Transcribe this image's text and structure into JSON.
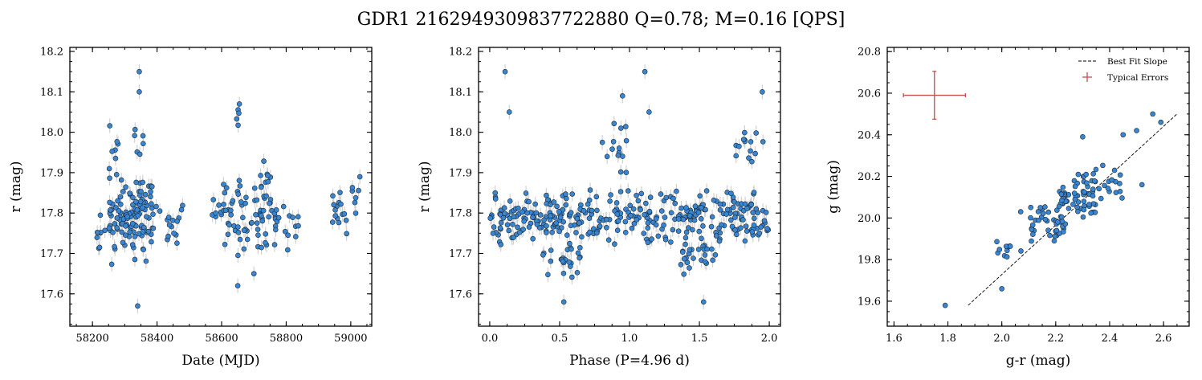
{
  "title": "GDR1 2162949309837722880  Q=0.78; M=0.16 [QPS]",
  "colors": {
    "point": "#3a85d0",
    "edge": "#1a2a3a",
    "errbar": "#d0d0d0",
    "fit": "#000000",
    "typical": "#c0504d"
  },
  "chart_data": [
    {
      "type": "scatter",
      "name": "lightcurve",
      "xlabel": "Date (MJD)",
      "ylabel": "r (mag)",
      "xlim": [
        58130,
        59065
      ],
      "ylim": [
        18.21,
        17.52
      ],
      "xticks": [
        58200,
        58400,
        58600,
        58800,
        59000
      ],
      "yticks": [
        17.6,
        17.7,
        17.8,
        17.9,
        18.0,
        18.1,
        18.2
      ],
      "seed": 11,
      "clusters": [
        {
          "x": [
            58210,
            58250
          ],
          "y": [
            17.68,
            17.82
          ],
          "n": 8
        },
        {
          "x": [
            58250,
            58390
          ],
          "y": [
            17.66,
            17.92
          ],
          "n": 110
        },
        {
          "x": [
            58250,
            58300
          ],
          "y": [
            17.85,
            18.02
          ],
          "n": 8
        },
        {
          "x": [
            58330,
            58360
          ],
          "y": [
            17.58,
            18.15
          ],
          "n": 12
        },
        {
          "x": [
            58390,
            58480
          ],
          "y": [
            17.67,
            17.86
          ],
          "n": 16
        },
        {
          "x": [
            58570,
            58630
          ],
          "y": [
            17.67,
            17.92
          ],
          "n": 20
        },
        {
          "x": [
            58630,
            58680
          ],
          "y": [
            17.62,
            17.97
          ],
          "n": 22
        },
        {
          "x": [
            58645,
            58660
          ],
          "y": [
            17.98,
            18.08
          ],
          "n": 4
        },
        {
          "x": [
            58690,
            58770
          ],
          "y": [
            17.68,
            17.95
          ],
          "n": 45
        },
        {
          "x": [
            58770,
            58840
          ],
          "y": [
            17.68,
            17.9
          ],
          "n": 12
        },
        {
          "x": [
            58940,
            59030
          ],
          "y": [
            17.72,
            17.92
          ],
          "n": 22
        }
      ],
      "points": [
        [
          58340,
          17.57
        ],
        [
          58345,
          18.15
        ],
        [
          58345,
          18.1
        ],
        [
          58655,
          18.07
        ],
        [
          58650,
          17.62
        ],
        [
          58700,
          17.65
        ]
      ]
    },
    {
      "type": "scatter",
      "name": "phase-folded",
      "xlabel": "Phase (P=4.96 d)",
      "ylabel": "r (mag)",
      "xlim": [
        -0.08,
        2.08
      ],
      "ylim": [
        18.21,
        17.52
      ],
      "xticks": [
        0.0,
        0.5,
        1.0,
        1.5,
        2.0
      ],
      "yticks": [
        17.6,
        17.7,
        17.8,
        17.9,
        18.0,
        18.1,
        18.2
      ],
      "seed": 23,
      "clusters": [
        {
          "x": [
            0.0,
            1.0
          ],
          "y": [
            17.7,
            17.88
          ],
          "n": 170
        },
        {
          "x": [
            1.0,
            2.0
          ],
          "y": [
            17.7,
            17.88
          ],
          "n": 170
        },
        {
          "x": [
            0.35,
            0.65
          ],
          "y": [
            17.63,
            17.76
          ],
          "n": 25
        },
        {
          "x": [
            1.35,
            1.65
          ],
          "y": [
            17.63,
            17.76
          ],
          "n": 25
        },
        {
          "x": [
            0.75,
            0.98
          ],
          "y": [
            17.88,
            18.05
          ],
          "n": 14
        },
        {
          "x": [
            1.75,
            1.98
          ],
          "y": [
            17.88,
            18.05
          ],
          "n": 14
        }
      ],
      "points": [
        [
          0.11,
          18.15
        ],
        [
          1.11,
          18.15
        ],
        [
          0.53,
          17.58
        ],
        [
          1.53,
          17.58
        ],
        [
          0.14,
          18.05
        ],
        [
          1.14,
          18.05
        ],
        [
          0.95,
          18.09
        ],
        [
          1.95,
          18.1
        ]
      ]
    },
    {
      "type": "scatter",
      "name": "color-magnitude",
      "xlabel": "g-r (mag)",
      "ylabel": "g (mag)",
      "xlim": [
        1.575,
        2.695
      ],
      "ylim": [
        20.82,
        19.48
      ],
      "xticks": [
        1.6,
        1.8,
        2.0,
        2.2,
        2.4,
        2.6
      ],
      "yticks": [
        19.6,
        19.8,
        20.0,
        20.2,
        20.4,
        20.6,
        20.8
      ],
      "seed": 37,
      "clusters": [
        {
          "x": [
            1.98,
            2.1
          ],
          "y": [
            19.78,
            19.92
          ],
          "n": 12
        },
        {
          "x": [
            2.1,
            2.25
          ],
          "y": [
            19.85,
            20.1
          ],
          "n": 40
        },
        {
          "x": [
            2.2,
            2.35
          ],
          "y": [
            19.95,
            20.22
          ],
          "n": 50
        },
        {
          "x": [
            2.3,
            2.45
          ],
          "y": [
            20.05,
            20.28
          ],
          "n": 30
        }
      ],
      "points": [
        [
          1.79,
          19.58
        ],
        [
          2.0,
          19.66
        ],
        [
          2.56,
          20.5
        ],
        [
          2.59,
          20.46
        ],
        [
          2.3,
          20.39
        ],
        [
          2.45,
          20.4
        ],
        [
          2.5,
          20.42
        ],
        [
          2.52,
          20.16
        ],
        [
          2.07,
          20.03
        ]
      ],
      "fit_line": {
        "x": [
          1.875,
          2.65
        ],
        "y": [
          19.58,
          20.5
        ]
      },
      "typical_error": {
        "x": 1.75,
        "y": 20.59,
        "xerr": 0.115,
        "yerr": 0.115
      },
      "legend": {
        "position": "top-right",
        "entries": [
          "Best Fit Slope",
          "Typical Errors"
        ]
      }
    }
  ]
}
